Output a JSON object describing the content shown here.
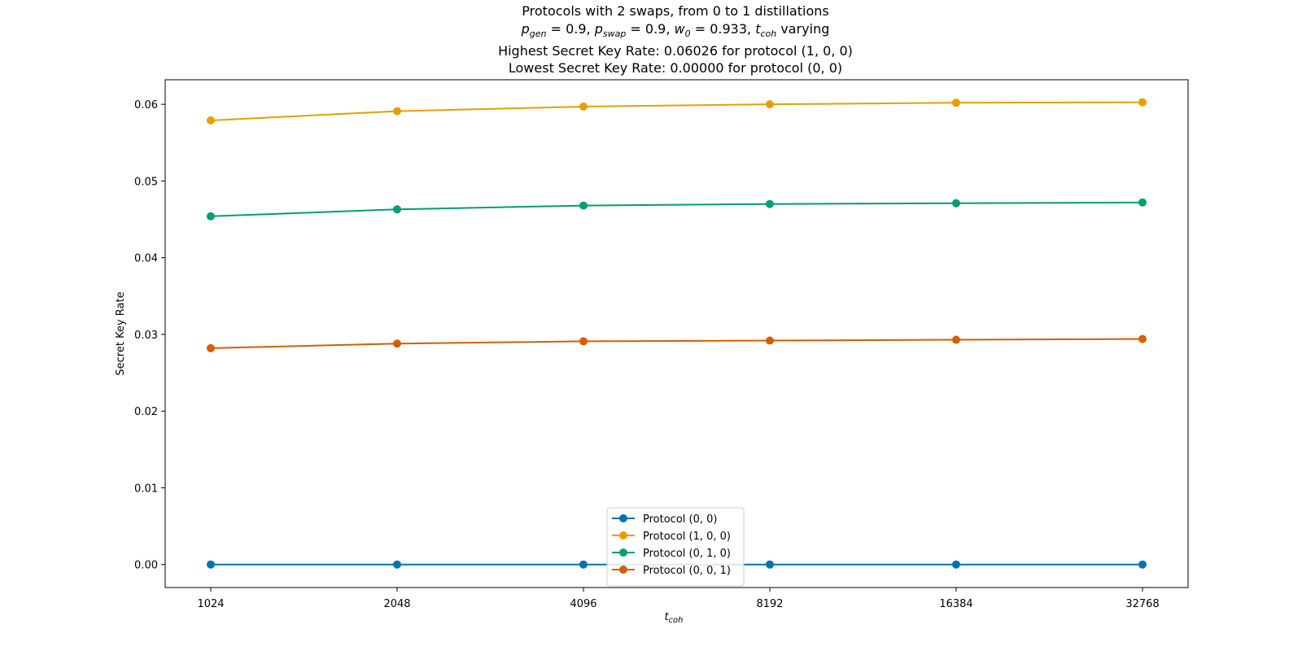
{
  "chart_data": {
    "type": "line",
    "title_lines": [
      "Protocols with 2 swaps, from 0 to 1 distillations",
      "",
      "Highest Secret Key Rate: 0.06026 for protocol (1, 0, 0)",
      "Lowest Secret Key Rate: 0.00000 for protocol (0, 0)"
    ],
    "params_line": {
      "parts": [
        {
          "text": "p",
          "style": "italic"
        },
        {
          "text": "gen",
          "style": "sub"
        },
        {
          "text": " = 0.9, ",
          "style": "normal"
        },
        {
          "text": "p",
          "style": "italic"
        },
        {
          "text": "swap",
          "style": "sub"
        },
        {
          "text": " = 0.9, ",
          "style": "normal"
        },
        {
          "text": "w",
          "style": "italic"
        },
        {
          "text": "0",
          "style": "sub"
        },
        {
          "text": " = 0.933, ",
          "style": "normal"
        },
        {
          "text": "t",
          "style": "italic"
        },
        {
          "text": "coh",
          "style": "sub"
        },
        {
          "text": " varying",
          "style": "normal"
        }
      ]
    },
    "xlabel_main": "t",
    "xlabel_sub": "coh",
    "ylabel": "Secret Key Rate",
    "x": [
      1024,
      2048,
      4096,
      8192,
      16384,
      32768
    ],
    "x_ticks": [
      "1024",
      "2048",
      "4096",
      "8192",
      "16384",
      "32768"
    ],
    "x_scale": "log2",
    "ylim": [
      -0.003,
      0.0632
    ],
    "y_ticks": [
      "0.00",
      "0.01",
      "0.02",
      "0.03",
      "0.04",
      "0.05",
      "0.06"
    ],
    "y_tick_values": [
      0.0,
      0.01,
      0.02,
      0.03,
      0.04,
      0.05,
      0.06
    ],
    "grid": false,
    "legend_position": "bottom-center",
    "series": [
      {
        "name": "Protocol (0, 0)",
        "color": "#0072B2",
        "values": [
          0.0,
          0.0,
          0.0,
          0.0,
          0.0,
          0.0
        ]
      },
      {
        "name": "Protocol (1, 0, 0)",
        "color": "#E69F00",
        "values": [
          0.0579,
          0.0591,
          0.0597,
          0.06,
          0.0602,
          0.06026
        ]
      },
      {
        "name": "Protocol (0, 1, 0)",
        "color": "#009E73",
        "values": [
          0.0454,
          0.0463,
          0.0468,
          0.047,
          0.0471,
          0.0472
        ]
      },
      {
        "name": "Protocol (0, 0, 1)",
        "color": "#D55E00",
        "values": [
          0.0282,
          0.0288,
          0.0291,
          0.0292,
          0.0293,
          0.0294
        ]
      }
    ]
  }
}
